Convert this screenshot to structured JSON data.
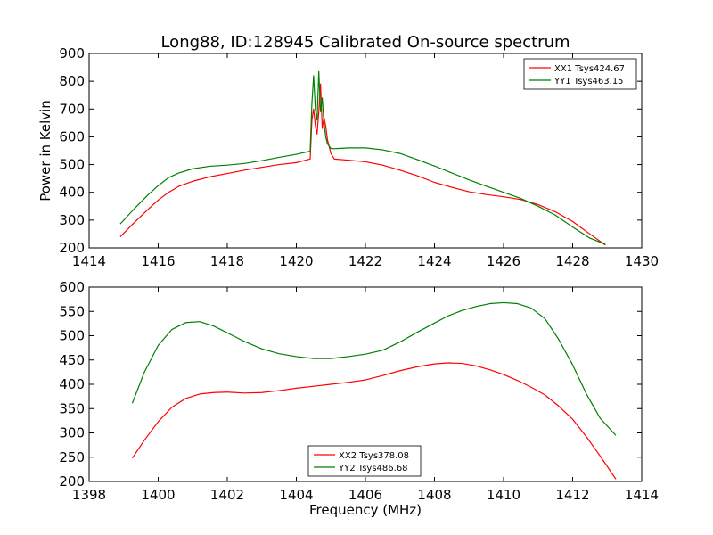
{
  "figure": {
    "title": "Long88, ID:128945 Calibrated On-source spectrum"
  },
  "chart_data": [
    {
      "type": "line",
      "title": "Long88, ID:128945 Calibrated On-source spectrum",
      "xlabel": "",
      "ylabel": "Power in Kelvin",
      "xlim": [
        1414,
        1430
      ],
      "ylim": [
        200,
        900
      ],
      "xticks": [
        1414,
        1416,
        1418,
        1420,
        1422,
        1424,
        1426,
        1428,
        1430
      ],
      "yticks": [
        200,
        300,
        400,
        500,
        600,
        700,
        800,
        900
      ],
      "grid": false,
      "legend": "top-right",
      "series": [
        {
          "name": "XX1 Tsys424.67",
          "color": "#ff0000",
          "x": [
            1414.9,
            1415.3,
            1415.7,
            1416.0,
            1416.3,
            1416.6,
            1417.0,
            1417.5,
            1418.0,
            1418.5,
            1419.0,
            1419.5,
            1420.0,
            1420.4,
            1420.45,
            1420.5,
            1420.55,
            1420.6,
            1420.65,
            1420.7,
            1420.75,
            1420.8,
            1420.85,
            1420.9,
            1421.0,
            1421.1,
            1421.5,
            1422.0,
            1422.5,
            1423.0,
            1423.5,
            1424.0,
            1424.5,
            1425.0,
            1425.5,
            1426.0,
            1426.5,
            1427.0,
            1427.5,
            1428.0,
            1428.5,
            1428.95
          ],
          "y": [
            240,
            290,
            338,
            372,
            400,
            422,
            440,
            456,
            468,
            480,
            490,
            500,
            507,
            520,
            660,
            700,
            640,
            610,
            690,
            790,
            630,
            670,
            640,
            590,
            540,
            520,
            516,
            510,
            498,
            480,
            460,
            436,
            418,
            402,
            392,
            384,
            374,
            356,
            330,
            295,
            250,
            210
          ]
        },
        {
          "name": "YY1 Tsys463.15",
          "color": "#008000",
          "x": [
            1414.9,
            1415.3,
            1415.7,
            1416.0,
            1416.3,
            1416.6,
            1417.0,
            1417.5,
            1418.0,
            1418.5,
            1419.0,
            1419.5,
            1420.0,
            1420.4,
            1420.45,
            1420.5,
            1420.55,
            1420.6,
            1420.65,
            1420.7,
            1420.75,
            1420.8,
            1420.85,
            1420.9,
            1421.0,
            1421.1,
            1421.5,
            1422.0,
            1422.5,
            1423.0,
            1423.5,
            1424.0,
            1424.5,
            1425.0,
            1425.5,
            1426.0,
            1426.5,
            1427.0,
            1427.5,
            1428.0,
            1428.5,
            1428.95
          ],
          "y": [
            286,
            340,
            390,
            424,
            453,
            470,
            485,
            494,
            498,
            504,
            514,
            526,
            537,
            548,
            720,
            820,
            700,
            660,
            835,
            690,
            740,
            650,
            600,
            575,
            558,
            557,
            560,
            560,
            553,
            540,
            518,
            495,
            470,
            445,
            422,
            400,
            378,
            350,
            318,
            275,
            235,
            213
          ]
        }
      ]
    },
    {
      "type": "line",
      "title": "",
      "xlabel": "Frequency (MHz)",
      "ylabel": "",
      "xlim": [
        1398,
        1414
      ],
      "ylim": [
        200,
        600
      ],
      "xticks": [
        1398,
        1400,
        1402,
        1404,
        1406,
        1408,
        1410,
        1412,
        1414
      ],
      "yticks": [
        200,
        250,
        300,
        350,
        400,
        450,
        500,
        550,
        600
      ],
      "grid": false,
      "legend": "bottom-center",
      "series": [
        {
          "name": "XX2 Tsys378.08",
          "color": "#ff0000",
          "x": [
            1399.25,
            1399.6,
            1400.0,
            1400.4,
            1400.8,
            1401.2,
            1401.6,
            1402.0,
            1402.5,
            1403.0,
            1403.5,
            1404.0,
            1404.5,
            1405.0,
            1405.5,
            1406.0,
            1406.5,
            1407.0,
            1407.5,
            1408.0,
            1408.4,
            1408.8,
            1409.2,
            1409.6,
            1410.0,
            1410.4,
            1410.8,
            1411.2,
            1411.6,
            1412.0,
            1412.4,
            1412.8,
            1413.25
          ],
          "y": [
            248,
            285,
            323,
            353,
            371,
            380,
            383,
            384,
            382,
            383,
            387,
            392,
            396,
            400,
            404,
            409,
            418,
            428,
            436,
            442,
            444,
            443,
            438,
            430,
            420,
            408,
            394,
            378,
            355,
            328,
            292,
            252,
            205
          ]
        },
        {
          "name": "YY2 Tsys486.68",
          "color": "#008000",
          "x": [
            1399.25,
            1399.6,
            1400.0,
            1400.4,
            1400.8,
            1401.2,
            1401.6,
            1402.0,
            1402.5,
            1403.0,
            1403.5,
            1404.0,
            1404.5,
            1405.0,
            1405.5,
            1406.0,
            1406.5,
            1407.0,
            1407.5,
            1408.0,
            1408.4,
            1408.8,
            1409.2,
            1409.6,
            1410.0,
            1410.4,
            1410.8,
            1411.2,
            1411.6,
            1412.0,
            1412.4,
            1412.8,
            1413.25
          ],
          "y": [
            361,
            425,
            480,
            513,
            527,
            529,
            520,
            506,
            488,
            473,
            463,
            457,
            453,
            453,
            457,
            462,
            470,
            487,
            507,
            526,
            541,
            552,
            560,
            566,
            568,
            566,
            557,
            535,
            492,
            440,
            380,
            330,
            295
          ]
        }
      ]
    }
  ]
}
